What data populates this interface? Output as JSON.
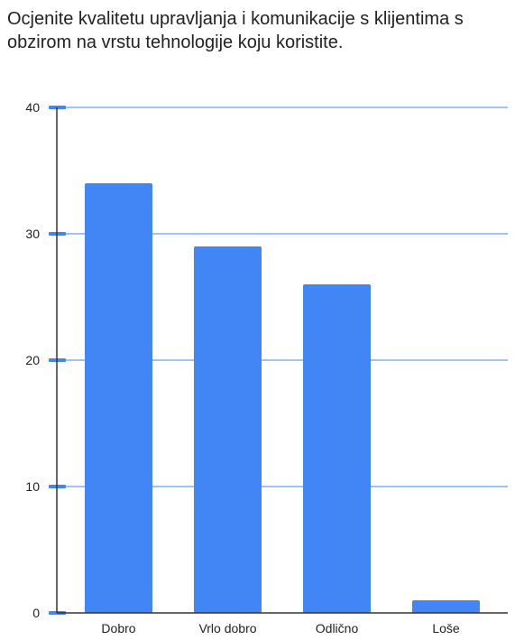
{
  "chart_data": {
    "type": "bar",
    "title": "Ocjenite kvalitetu upravljanja i komunikacije s klijentima s obzirom na vrstu tehnologije koju koristite.",
    "categories": [
      "Dobro",
      "Vrlo dobro",
      "Odlično",
      "Loše"
    ],
    "values": [
      34,
      29,
      26,
      1
    ],
    "xlabel": "",
    "ylabel": "",
    "ylim": [
      0,
      40
    ],
    "yticks": [
      0,
      10,
      20,
      30,
      40
    ],
    "grid": true,
    "legend": "none",
    "colors": {
      "bar": "#4285f4",
      "grid": "#4285f4",
      "axis": "#333333",
      "text": "#222222"
    }
  }
}
